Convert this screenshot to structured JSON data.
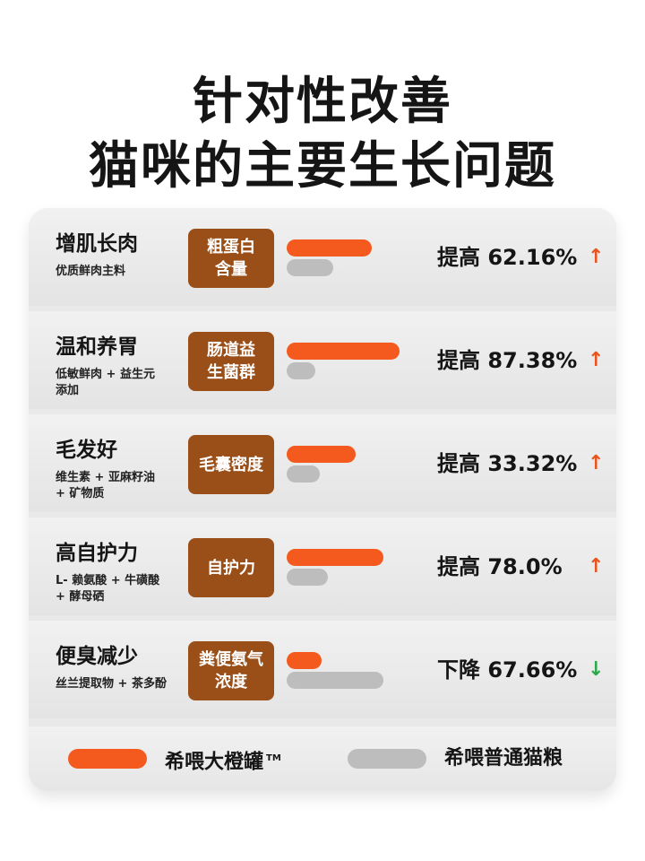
{
  "title_line1": "针对性改善",
  "title_line2": "猫咪的主要生长问题",
  "colors": {
    "orange": "#f45a1e",
    "gray": "#bdbdbd",
    "metric_box": "#9b4f18",
    "up_arrow": "#e8541c",
    "down_arrow": "#2da84a"
  },
  "chart_data": {
    "type": "bar",
    "orientation": "horizontal",
    "categories": [
      "粗蛋白含量",
      "肠道益生菌群",
      "毛囊密度",
      "自护力",
      "粪便氨气浓度"
    ],
    "series": [
      {
        "name": "希喂大橙罐",
        "values": [
          0.62,
          0.82,
          0.5,
          0.7,
          0.25
        ]
      },
      {
        "name": "希喂普通猫粮",
        "values": [
          0.34,
          0.21,
          0.24,
          0.3,
          0.7
        ]
      }
    ],
    "value_scale": "relative (no axis printed)",
    "legend": "bottom",
    "grid": false
  },
  "rows": [
    {
      "name": "增肌长肉",
      "sub": "优质鲜肉主料",
      "metric": "粗蛋白\n含量",
      "change": "提高 62.16%",
      "direction": "up",
      "arrow": "↑"
    },
    {
      "name": "温和养胃",
      "sub": "低敏鲜肉 + 益生元\n添加",
      "metric": "肠道益\n生菌群",
      "change": "提高 87.38%",
      "direction": "up",
      "arrow": "↑"
    },
    {
      "name": "毛发好",
      "sub": "维生素 + 亚麻籽油\n+ 矿物质",
      "metric": "毛囊密度",
      "change": "提高 33.32%",
      "direction": "up",
      "arrow": "↑"
    },
    {
      "name": "高自护力",
      "sub": "L- 赖氨酸 + 牛磺酸\n+ 酵母硒",
      "metric": "自护力",
      "change": "提高 78.0%",
      "direction": "up",
      "arrow": "↑"
    },
    {
      "name": "便臭减少",
      "sub": "丝兰提取物 + 茶多酚",
      "metric": "粪便氨气\n浓度",
      "change": "下降 67.66%",
      "direction": "down",
      "arrow": "↓"
    }
  ],
  "legend": {
    "item1": "希喂大橙罐",
    "item1_mark": "TM",
    "item2": "希喂普通猫粮"
  }
}
